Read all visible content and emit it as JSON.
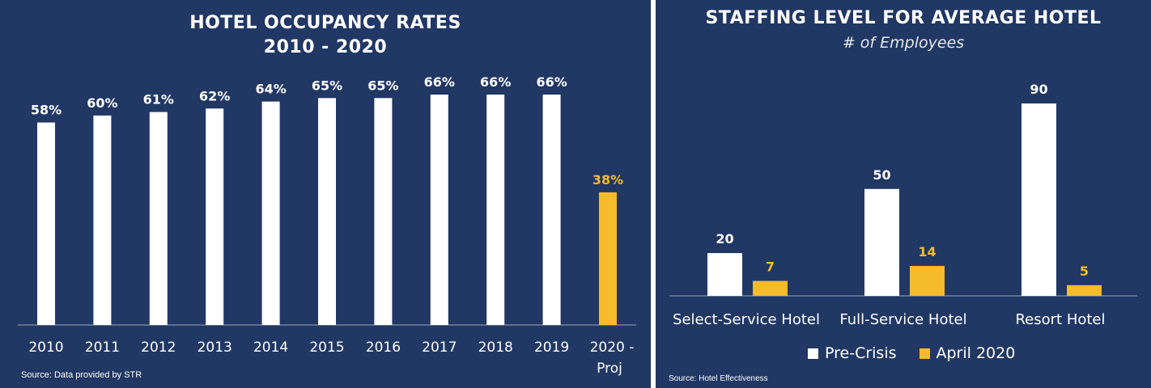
{
  "colors": {
    "background": "#213764",
    "bar_primary": "#ffffff",
    "bar_highlight": "#f5bb2b",
    "text": "#ffffff"
  },
  "left": {
    "title_line1": "HOTEL OCCUPANCY RATES",
    "title_line2": "2010 - 2020",
    "source": "Source: Data provided by STR"
  },
  "right": {
    "title": "STAFFING LEVEL FOR AVERAGE HOTEL",
    "subtitle": "# of Employees",
    "source": "Source: Hotel Effectiveness",
    "legend": [
      {
        "label": "Pre-Crisis",
        "color": "#ffffff"
      },
      {
        "label": "April 2020",
        "color": "#f5bb2b"
      }
    ]
  },
  "chart_data": [
    {
      "type": "bar",
      "title": "HOTEL OCCUPANCY RATES 2010 - 2020",
      "categories": [
        "2010",
        "2011",
        "2012",
        "2013",
        "2014",
        "2015",
        "2016",
        "2017",
        "2018",
        "2019",
        "2020 - Proj"
      ],
      "values": [
        58,
        60,
        61,
        62,
        64,
        65,
        65,
        66,
        66,
        66,
        38
      ],
      "value_labels": [
        "58%",
        "60%",
        "61%",
        "62%",
        "64%",
        "65%",
        "65%",
        "66%",
        "66%",
        "66%",
        "38%"
      ],
      "highlight_index": 10,
      "ylim": [
        0,
        66
      ],
      "grid": false
    },
    {
      "type": "bar",
      "title": "STAFFING LEVEL FOR AVERAGE HOTEL",
      "subtitle": "# of Employees",
      "categories": [
        "Select-Service Hotel",
        "Full-Service Hotel",
        "Resort Hotel"
      ],
      "series": [
        {
          "name": "Pre-Crisis",
          "values": [
            20,
            50,
            90
          ],
          "color": "#ffffff"
        },
        {
          "name": "April 2020",
          "values": [
            7,
            14,
            5
          ],
          "color": "#f5bb2b"
        }
      ],
      "ylim": [
        0,
        90
      ],
      "legend": "bottom",
      "grid": false
    }
  ]
}
